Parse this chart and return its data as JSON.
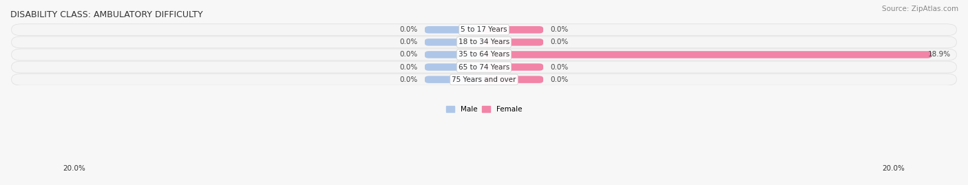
{
  "title": "DISABILITY CLASS: AMBULATORY DIFFICULTY",
  "source": "Source: ZipAtlas.com",
  "categories": [
    "5 to 17 Years",
    "18 to 34 Years",
    "35 to 64 Years",
    "65 to 74 Years",
    "75 Years and over"
  ],
  "male_values": [
    0.0,
    0.0,
    0.0,
    0.0,
    0.0
  ],
  "female_values": [
    0.0,
    0.0,
    18.9,
    0.0,
    0.0
  ],
  "male_color": "#aec6e8",
  "female_color": "#f284a8",
  "bar_bg_color": "#f2f2f2",
  "x_max": 20.0,
  "x_min": -20.0,
  "stub_size": 2.5,
  "label_fontsize": 7.5,
  "title_fontsize": 9,
  "source_fontsize": 7.5,
  "legend_male": "Male",
  "legend_female": "Female",
  "bar_height": 0.58,
  "background_color": "#f7f7f7",
  "row_bg_light": "#f9f9f9",
  "row_bg_dark": "#efefef"
}
